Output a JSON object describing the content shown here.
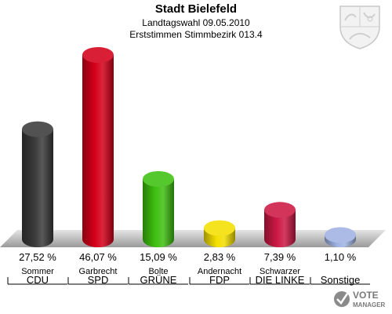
{
  "header": {
    "title": "Stadt Bielefeld",
    "subtitle": "Landtagswahl 09.05.2010",
    "subtitle2": "Erststimmen Stimmbezirk 013.4"
  },
  "logo": {
    "line1": "VOTE",
    "line2": "MANAGER"
  },
  "chart_data": {
    "type": "bar",
    "categories": [
      "CDU",
      "SPD",
      "GRÜNE",
      "FDP",
      "DIE LINKE",
      "Sonstige"
    ],
    "candidates": [
      "Sommer",
      "Garbrecht",
      "Bolte",
      "Andernacht",
      "Schwarzer",
      ""
    ],
    "values": [
      27.52,
      46.07,
      15.09,
      2.83,
      7.39,
      1.1
    ],
    "value_labels": [
      "27,52 %",
      "46,07 %",
      "15,09 %",
      "2,83 %",
      "7,39 %",
      "1,10 %"
    ],
    "colors": [
      "#3a3a3a",
      "#d4001a",
      "#3ec010",
      "#f4df00",
      "#cc1844",
      "#9fb2e2"
    ],
    "ylim": [
      0,
      46.07
    ],
    "grid": false
  }
}
